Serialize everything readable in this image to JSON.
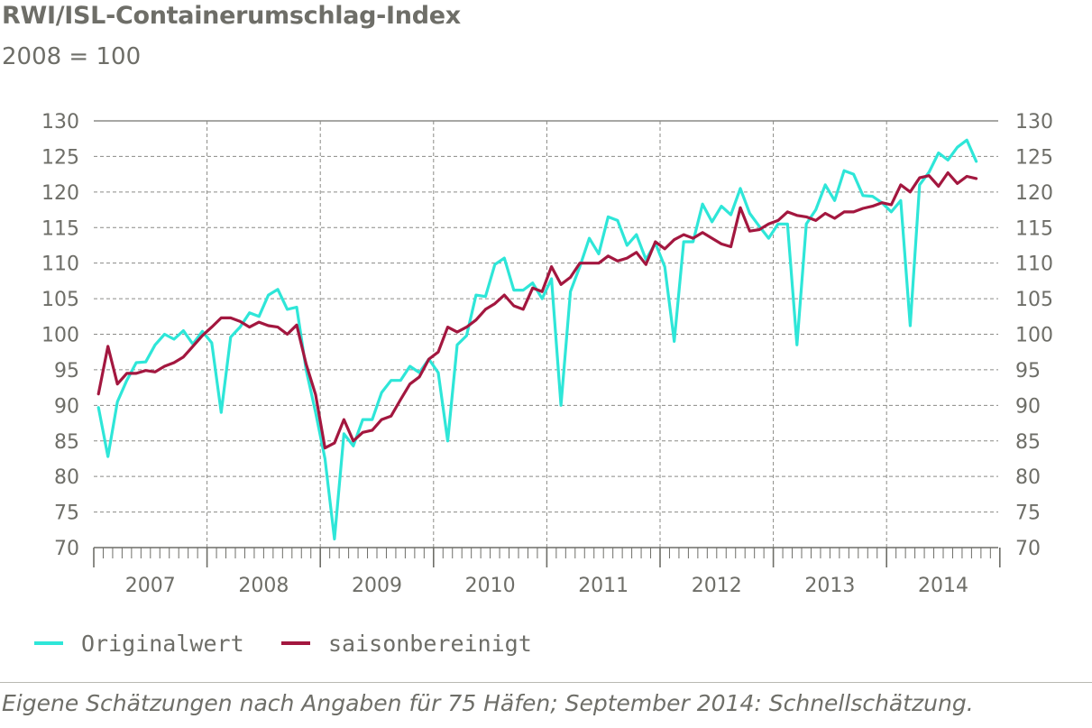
{
  "title": "RWI/ISL-Containerumschlag-Index",
  "subtitle": "2008 = 100",
  "footnote": "Eigene Schätzungen nach Angaben für 75 Häfen; September 2014: Schnellschätzung.",
  "colors": {
    "original": "#2ee6d8",
    "seasonal": "#a3173f",
    "grid": "#8a8a86",
    "axis": "#6e6e68"
  },
  "chart_data": {
    "type": "line",
    "x_unit": "month",
    "x_start": "2007-01",
    "x_end": "2014-09",
    "x_range_years": [
      "2007",
      "2014"
    ],
    "year_labels": [
      "2007",
      "2008",
      "2009",
      "2010",
      "2011",
      "2012",
      "2013",
      "2014"
    ],
    "ylim": [
      70,
      130
    ],
    "yticks": [
      "70",
      "75",
      "80",
      "85",
      "90",
      "95",
      "100",
      "105",
      "110",
      "115",
      "120",
      "125",
      "130"
    ],
    "grid": true,
    "legend_position": "bottom-left",
    "series": [
      {
        "name": "Originalwert",
        "color": "#2ee6d8",
        "values": [
          89.7,
          82.8,
          90.5,
          93.5,
          96.0,
          96.1,
          98.5,
          100.0,
          99.3,
          100.5,
          98.6,
          100.4,
          98.8,
          89.0,
          99.6,
          101.0,
          103.0,
          102.5,
          105.5,
          106.3,
          103.5,
          103.8,
          95.0,
          89.0,
          82.5,
          71.2,
          86.0,
          84.3,
          88.0,
          88.0,
          91.8,
          93.5,
          93.5,
          95.5,
          94.6,
          96.5,
          94.6,
          85.0,
          98.5,
          99.8,
          105.5,
          105.3,
          109.8,
          110.7,
          106.2,
          106.2,
          107.2,
          105.0,
          107.8,
          90.0,
          106.0,
          109.5,
          113.5,
          111.3,
          116.5,
          116.0,
          112.5,
          114.0,
          110.5,
          112.8,
          109.5,
          99.0,
          113.0,
          113.0,
          118.3,
          115.8,
          118.0,
          116.8,
          120.5,
          117.0,
          115.2,
          113.5,
          115.5,
          115.5,
          98.5,
          115.5,
          117.5,
          121.0,
          118.8,
          123.0,
          122.5,
          119.5,
          119.4,
          118.5,
          117.2,
          118.8,
          101.2,
          121.0,
          122.8,
          125.5,
          124.5,
          126.3,
          127.3,
          124.3
        ]
      },
      {
        "name": "saisonbereinigt",
        "color": "#a3173f",
        "values": [
          91.6,
          98.3,
          93.0,
          94.5,
          94.5,
          94.9,
          94.7,
          95.5,
          96.0,
          96.8,
          98.3,
          99.8,
          101.0,
          102.3,
          102.3,
          101.8,
          101.0,
          101.7,
          101.2,
          101.0,
          100.0,
          101.3,
          95.8,
          91.5,
          84.0,
          84.7,
          88.0,
          85.0,
          86.2,
          86.5,
          88.0,
          88.5,
          90.8,
          93.0,
          94.0,
          96.5,
          97.5,
          101.0,
          100.3,
          101.0,
          102.0,
          103.5,
          104.3,
          105.5,
          104.0,
          103.5,
          106.5,
          106.0,
          109.5,
          107.0,
          108.0,
          110.0,
          110.0,
          110.0,
          111.0,
          110.3,
          110.7,
          111.5,
          109.8,
          113.0,
          112.0,
          113.3,
          114.0,
          113.5,
          114.3,
          113.5,
          112.7,
          112.3,
          117.8,
          114.5,
          114.7,
          115.5,
          116.0,
          117.2,
          116.7,
          116.5,
          116.0,
          117.0,
          116.3,
          117.2,
          117.2,
          117.7,
          118.0,
          118.5,
          118.2,
          121.0,
          120.0,
          122.0,
          122.3,
          120.8,
          122.7,
          121.2,
          122.2,
          121.9
        ]
      }
    ]
  }
}
